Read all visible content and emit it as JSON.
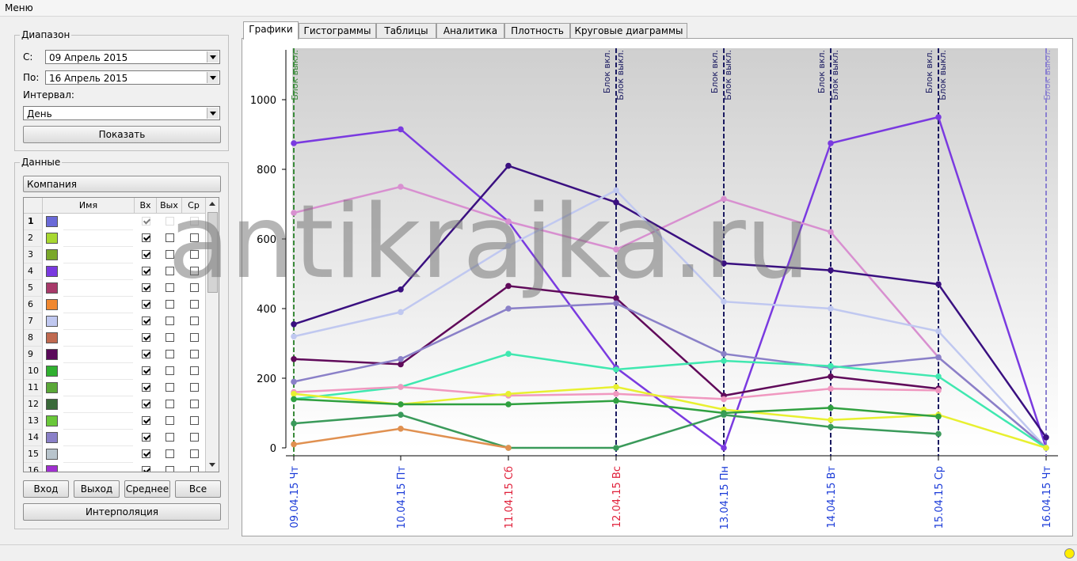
{
  "menu": {
    "label": "Меню"
  },
  "range": {
    "legend": "Диапазон",
    "from_label": "С:",
    "from_value": "09 Апрель 2015",
    "to_label": "По:",
    "to_value": "16 Апрель 2015",
    "interval_label": "Интервал:",
    "interval_value": "День",
    "show_button": "Показать"
  },
  "data_panel": {
    "legend": "Данные",
    "company_header": "Компания",
    "columns": [
      "Имя",
      "Вх",
      "Вых",
      "Ср"
    ],
    "rows": [
      {
        "n": "1",
        "color": "#6a6ad8",
        "in": true,
        "out": false,
        "avg": false
      },
      {
        "n": "2",
        "color": "#a8d830",
        "in": true,
        "out": false,
        "avg": false
      },
      {
        "n": "3",
        "color": "#7aa82a",
        "in": true,
        "out": false,
        "avg": false
      },
      {
        "n": "4",
        "color": "#7a3ae0",
        "in": true,
        "out": false,
        "avg": false
      },
      {
        "n": "5",
        "color": "#a83a6a",
        "in": true,
        "out": false,
        "avg": false
      },
      {
        "n": "6",
        "color": "#f08830",
        "in": true,
        "out": false,
        "avg": false
      },
      {
        "n": "7",
        "color": "#c0c8f0",
        "in": true,
        "out": false,
        "avg": false
      },
      {
        "n": "8",
        "color": "#c06a50",
        "in": true,
        "out": false,
        "avg": false
      },
      {
        "n": "9",
        "color": "#5a0a5a",
        "in": true,
        "out": false,
        "avg": false
      },
      {
        "n": "10",
        "color": "#30b030",
        "in": true,
        "out": false,
        "avg": false
      },
      {
        "n": "11",
        "color": "#5aa838",
        "in": true,
        "out": false,
        "avg": false
      },
      {
        "n": "12",
        "color": "#3a6a3a",
        "in": true,
        "out": false,
        "avg": false
      },
      {
        "n": "13",
        "color": "#6ac83a",
        "in": true,
        "out": false,
        "avg": false
      },
      {
        "n": "14",
        "color": "#8a80c8",
        "in": true,
        "out": false,
        "avg": false
      },
      {
        "n": "15",
        "color": "#b8c4cc",
        "in": true,
        "out": false,
        "avg": false
      },
      {
        "n": "16",
        "color": "#a030d0",
        "in": true,
        "out": false,
        "avg": false
      }
    ],
    "buttons": {
      "in": "Вход",
      "out": "Выход",
      "avg": "Среднее",
      "all": "Все",
      "interp": "Интерполяция"
    }
  },
  "tabs": [
    "Графики",
    "Гистограммы",
    "Таблицы",
    "Аналитика",
    "Плотность",
    "Круговые диаграммы"
  ],
  "watermark": "antikrajka.ru",
  "chart_data": {
    "type": "line",
    "x": [
      "09.04.15 Чт",
      "10.04.15 Пт",
      "11.04.15 Сб",
      "12.04.15 Вс",
      "13.04.15 Пн",
      "14.04.15 Вт",
      "15.04.15 Ср",
      "16.04.15 Чт"
    ],
    "x_label_colors": [
      "#1a3ad8",
      "#1a3ad8",
      "#e0203a",
      "#e0203a",
      "#1a3ad8",
      "#1a3ad8",
      "#1a3ad8",
      "#1a3ad8"
    ],
    "yticks": [
      0,
      200,
      400,
      600,
      800,
      1000
    ],
    "ylim": [
      0,
      1150
    ],
    "grid": false,
    "series": [
      {
        "color": "#7a3ae0",
        "values": [
          875,
          915,
          650,
          230,
          0,
          875,
          950,
          0
        ]
      },
      {
        "color": "#d890d0",
        "values": [
          675,
          750,
          650,
          570,
          715,
          620,
          260,
          0
        ]
      },
      {
        "color": "#3a1080",
        "values": [
          355,
          455,
          810,
          705,
          530,
          510,
          470,
          30
        ]
      },
      {
        "color": "#c0c8f0",
        "values": [
          320,
          390,
          580,
          740,
          420,
          400,
          335,
          0
        ]
      },
      {
        "color": "#600a5a",
        "values": [
          255,
          240,
          465,
          430,
          150,
          205,
          170,
          null
        ]
      },
      {
        "color": "#8a80c8",
        "values": [
          190,
          255,
          400,
          415,
          270,
          230,
          260,
          0
        ]
      },
      {
        "color": "#40e8b0",
        "values": [
          140,
          175,
          270,
          225,
          250,
          235,
          205,
          0
        ]
      },
      {
        "color": "#f098c0",
        "values": [
          160,
          175,
          150,
          155,
          140,
          170,
          165,
          null
        ]
      },
      {
        "color": "#e8f030",
        "values": [
          155,
          125,
          155,
          175,
          110,
          80,
          95,
          0
        ]
      },
      {
        "color": "#30a040",
        "values": [
          140,
          125,
          125,
          135,
          100,
          115,
          90,
          null
        ]
      },
      {
        "color": "#3a9a5a",
        "values": [
          70,
          95,
          0,
          0,
          95,
          60,
          40,
          null
        ]
      },
      {
        "color": "#e09050",
        "values": [
          10,
          55,
          0,
          null,
          null,
          null,
          null,
          null
        ]
      }
    ],
    "markers": [
      {
        "x_index": 0,
        "lines": [
          "Блок выкл."
        ],
        "color": "#3a8a3a"
      },
      {
        "x_index": 3,
        "lines": [
          "Блок вкл.",
          "Блок выкл."
        ],
        "color": "#1a1a60"
      },
      {
        "x_index": 4,
        "lines": [
          "Блок вкл.",
          "Блок выкл."
        ],
        "color": "#1a1a60"
      },
      {
        "x_index": 5,
        "lines": [
          "Блок вкл.",
          "Блок выкл."
        ],
        "color": "#1a1a60"
      },
      {
        "x_index": 6,
        "lines": [
          "Блок вкл.",
          "Блок выкл."
        ],
        "color": "#1a1a60"
      },
      {
        "x_index": 7,
        "lines": [
          "Блок выкл."
        ],
        "color": "#8a80d0"
      }
    ]
  }
}
